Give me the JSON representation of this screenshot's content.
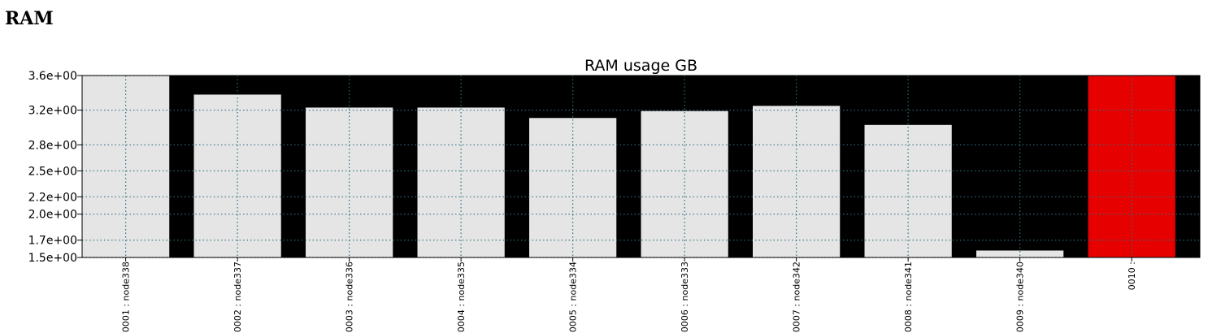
{
  "page": {
    "heading": "RAM"
  },
  "chart_data": {
    "type": "bar",
    "title": "RAM usage GB",
    "xlabel": "",
    "ylabel": "",
    "categories": [
      "0001 : node338",
      "0002 : node337",
      "0003 : node336",
      "0004 : node335",
      "0005 : node334",
      "0006 : node333",
      "0007 : node342",
      "0008 : node341",
      "0009 : node340",
      "0010 :"
    ],
    "values": [
      3.6,
      3.38,
      3.23,
      3.23,
      3.11,
      3.19,
      3.25,
      3.03,
      1.58,
      3.6
    ],
    "ylim": [
      1.5,
      3.6
    ],
    "yticks": [
      1.5,
      1.7,
      2.0,
      2.2,
      2.5,
      2.8,
      3.2,
      3.6
    ],
    "ytick_labels": [
      "1.5e+00",
      "1.7e+00",
      "2.0e+00",
      "2.2e+00",
      "2.5e+00",
      "2.8e+00",
      "3.2e+00",
      "3.6e+00"
    ],
    "grid": true,
    "colors": {
      "plot_background": "#000000",
      "bar": "#e5e5e5",
      "bar_highlight": "#e60000",
      "grid": "#2f6f80",
      "axis": "#000000"
    },
    "bar_colors": [
      "bar",
      "bar",
      "bar",
      "bar",
      "bar",
      "bar",
      "bar",
      "bar",
      "bar",
      "bar_highlight"
    ]
  }
}
